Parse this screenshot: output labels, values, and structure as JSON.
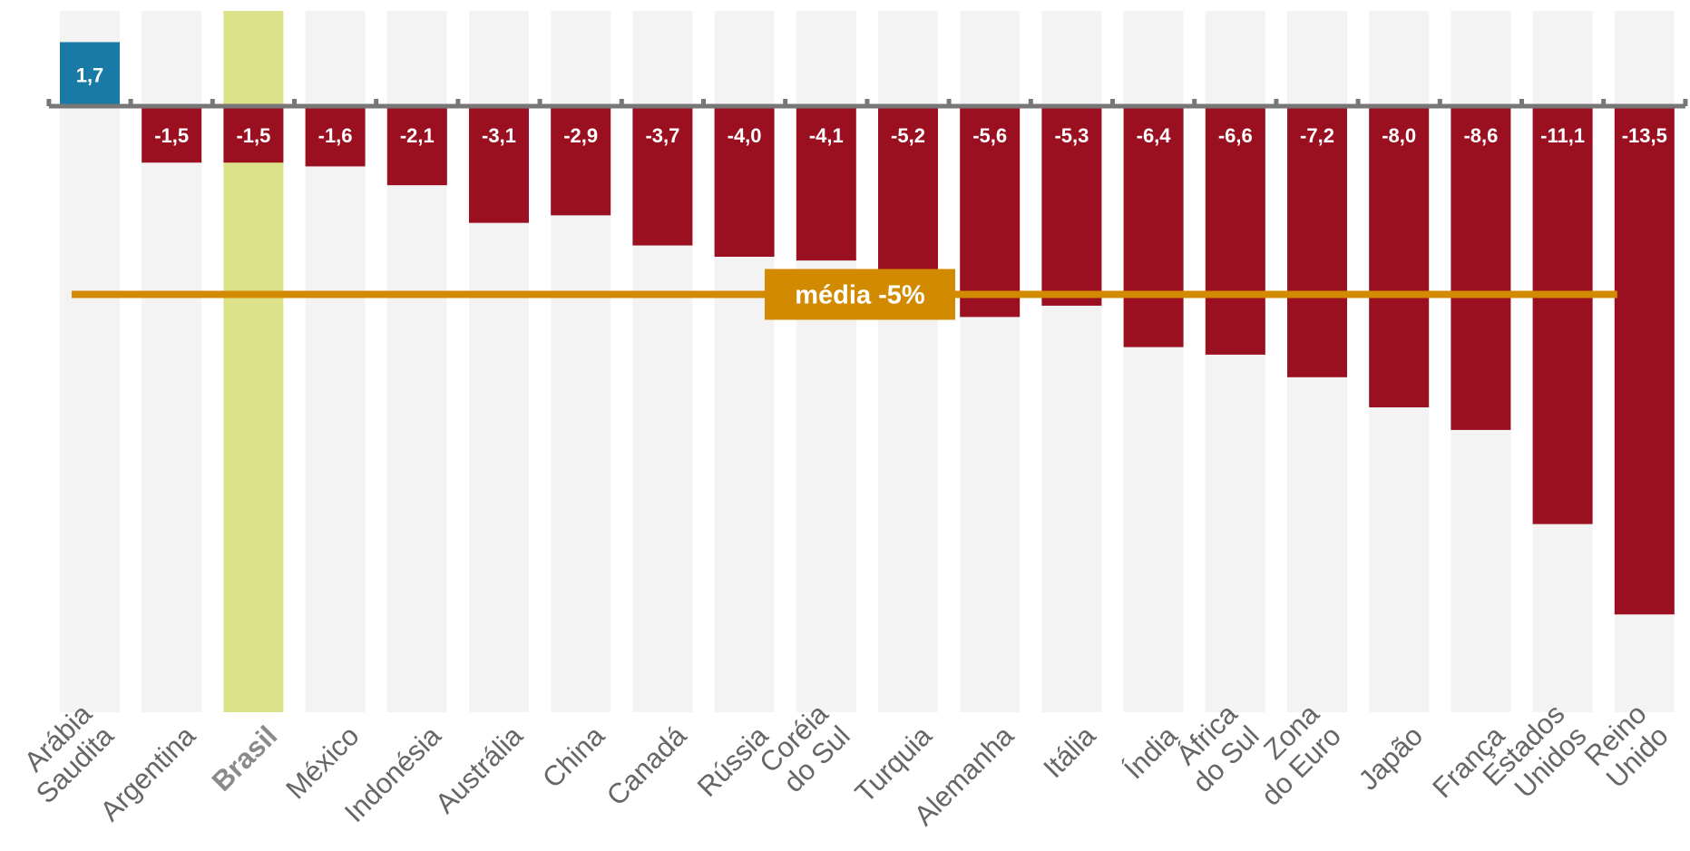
{
  "chart_data": {
    "type": "bar",
    "title": "",
    "xlabel": "",
    "ylabel": "",
    "categories": [
      [
        "Arábia",
        "Saudita"
      ],
      [
        "Argentina"
      ],
      [
        "Brasil"
      ],
      [
        "México"
      ],
      [
        "Indonésia"
      ],
      [
        "Austrália"
      ],
      [
        "China"
      ],
      [
        "Canadá"
      ],
      [
        "Rússia"
      ],
      [
        "Coréia",
        "do Sul"
      ],
      [
        "Turquia"
      ],
      [
        "Alemanha"
      ],
      [
        "Itália"
      ],
      [
        "Índia"
      ],
      [
        "África",
        "do Sul"
      ],
      [
        "Zona",
        "do Euro"
      ],
      [
        "Japão"
      ],
      [
        "França"
      ],
      [
        "Estados",
        "Unidos"
      ],
      [
        "Reino",
        "Unido"
      ]
    ],
    "values": [
      1.7,
      -1.5,
      -1.5,
      -1.6,
      -2.1,
      -3.1,
      -2.9,
      -3.7,
      -4.0,
      -4.1,
      -5.2,
      -5.6,
      -5.3,
      -6.4,
      -6.6,
      -7.2,
      -8.0,
      -8.6,
      -11.1,
      -13.5
    ],
    "value_labels": [
      "1,7",
      "-1,5",
      "-1,5",
      "-1,6",
      "-2,1",
      "-3,1",
      "-2,9",
      "-3,7",
      "-4,0",
      "-4,1",
      "-5,2",
      "-5,6",
      "-5,3",
      "-6,4",
      "-6,6",
      "-7,2",
      "-8,0",
      "-8,6",
      "-11,1",
      "-13,5"
    ],
    "highlight_index": 2,
    "average": {
      "value": -5,
      "label": "média -5%"
    },
    "ylim": [
      -14,
      1.7
    ],
    "grid": false,
    "legend": "none",
    "colors": {
      "positive": "#1a7aa6",
      "negative": "#9b1020",
      "highlight_column": "#dce28a",
      "column_background": "#f3f3f3",
      "axis": "#777777",
      "average": "#d28a00",
      "category_text": "#666666"
    }
  }
}
